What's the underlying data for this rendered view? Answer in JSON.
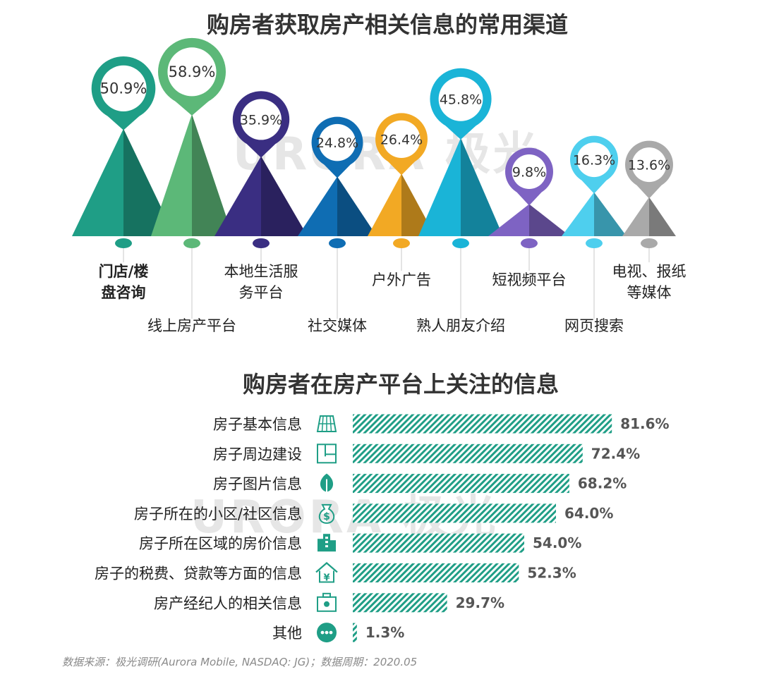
{
  "watermark": "URORA 极光",
  "chart_data": [
    {
      "type": "bar",
      "title": "购房者获取房产相关信息的常用渠道",
      "categories": [
        "门店/楼\n盘咨询",
        "线上房产平台",
        "本地生活服\n务平台",
        "社交媒体",
        "户外广告",
        "熟人朋友介绍",
        "短视频平台",
        "网页搜索",
        "电视、报纸\n等媒体"
      ],
      "values": [
        50.9,
        58.9,
        35.9,
        24.8,
        26.4,
        45.8,
        9.8,
        16.3,
        13.6
      ],
      "value_labels": [
        "50.9%",
        "58.9%",
        "35.9%",
        "24.8%",
        "26.4%",
        "45.8%",
        "9.8%",
        "16.3%",
        "13.6%"
      ],
      "colors": [
        "#1f9e86",
        "#5cb878",
        "#3a2e82",
        "#0f6db3",
        "#f2a924",
        "#1ab4d7",
        "#7e63c3",
        "#4ecfee",
        "#a9a9a9"
      ],
      "ylim": [
        0,
        60
      ]
    },
    {
      "type": "bar",
      "orientation": "horizontal",
      "title": "购房者在房产平台上关注的信息",
      "categories": [
        "房子基本信息",
        "房子周边建设",
        "房子图片信息",
        "房子所在的小区/社区信息",
        "房子所在区域的房价信息",
        "房子的税费、贷款等方面的信息",
        "房产经纪人的相关信息",
        "其他"
      ],
      "values": [
        81.6,
        72.4,
        68.2,
        64.0,
        54.0,
        52.3,
        29.7,
        1.3
      ],
      "value_labels": [
        "81.6%",
        "72.4%",
        "68.2%",
        "64.0%",
        "54.0%",
        "52.3%",
        "29.7%",
        "1.3%"
      ],
      "icons": [
        "solar-panel-icon",
        "floor-plan-icon",
        "plant-leaf-icon",
        "money-bag-icon",
        "buildings-icon",
        "house-yuan-icon",
        "agent-briefcase-icon",
        "more-dots-icon"
      ],
      "color": "#1f9e86",
      "xlim": [
        0,
        100
      ]
    }
  ],
  "source": "数据来源：极光调研(Aurora Mobile, NASDAQ: JG)；数据周期：2020.05"
}
